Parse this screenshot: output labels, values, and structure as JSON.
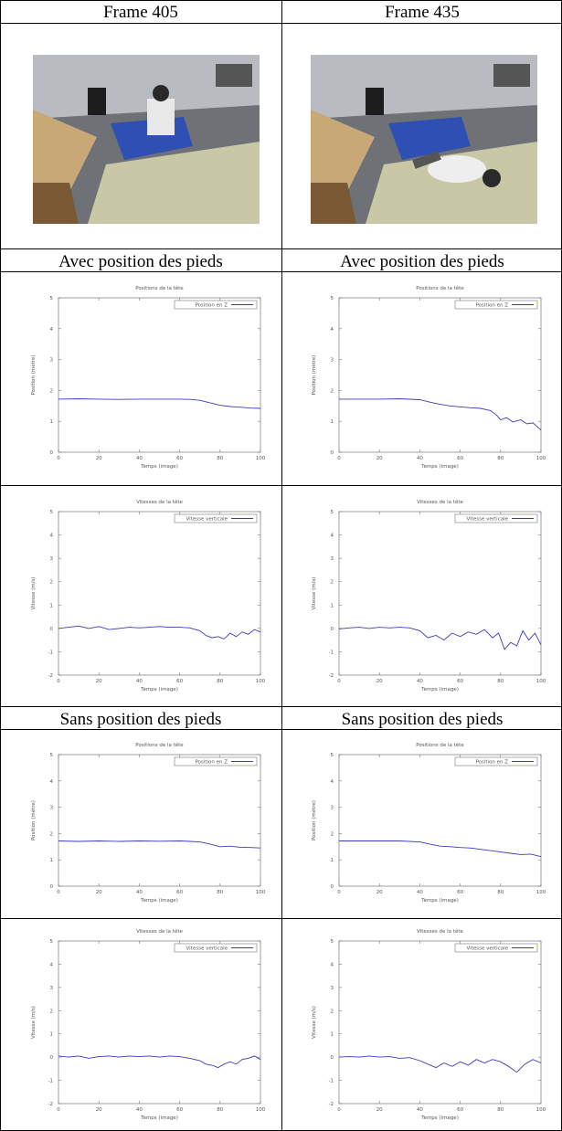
{
  "headers": {
    "frame_a": "Frame 405",
    "frame_b": "Frame 435",
    "avec_a": "Avec position des pieds",
    "avec_b": "Avec position des pieds",
    "sans_a": "Sans position des pieds",
    "sans_b": "Sans position des pieds"
  },
  "photos": [
    {
      "name": "frame-405-photo"
    },
    {
      "name": "frame-435-photo"
    }
  ],
  "chart_data": [
    {
      "id": "avec-pos-405",
      "type": "line",
      "title": "Positions de la tête",
      "xlabel": "Temps (image)",
      "ylabel": "Position (mètre)",
      "xlim": [
        0,
        100
      ],
      "ylim": [
        0,
        5
      ],
      "xticks": [
        0,
        20,
        40,
        60,
        80,
        100
      ],
      "yticks": [
        0,
        1,
        2,
        3,
        4,
        5
      ],
      "grid": false,
      "legend": "top-right",
      "series": [
        {
          "name": "Position en Z",
          "color": "#3b3bb8",
          "x": [
            0,
            10,
            20,
            30,
            40,
            50,
            60,
            65,
            70,
            75,
            80,
            85,
            90,
            95,
            100
          ],
          "y": [
            1.72,
            1.73,
            1.72,
            1.71,
            1.72,
            1.72,
            1.72,
            1.71,
            1.68,
            1.6,
            1.52,
            1.48,
            1.46,
            1.43,
            1.42
          ]
        }
      ]
    },
    {
      "id": "avec-pos-435",
      "type": "line",
      "title": "Positions de la tête",
      "xlabel": "Temps (image)",
      "ylabel": "Position (mètre)",
      "xlim": [
        0,
        100
      ],
      "ylim": [
        0,
        5
      ],
      "xticks": [
        0,
        20,
        40,
        60,
        80,
        100
      ],
      "yticks": [
        0,
        1,
        2,
        3,
        4,
        5
      ],
      "grid": false,
      "legend": "top-right",
      "series": [
        {
          "name": "Position en Z",
          "color": "#3b3bb8",
          "x": [
            0,
            10,
            20,
            30,
            40,
            45,
            50,
            55,
            60,
            65,
            70,
            75,
            78,
            80,
            83,
            86,
            90,
            93,
            96,
            100
          ],
          "y": [
            1.72,
            1.72,
            1.72,
            1.73,
            1.7,
            1.62,
            1.55,
            1.5,
            1.47,
            1.44,
            1.42,
            1.35,
            1.2,
            1.05,
            1.12,
            0.98,
            1.05,
            0.92,
            0.95,
            0.72
          ]
        }
      ]
    },
    {
      "id": "avec-vit-405",
      "type": "line",
      "title": "Vitesses de la tête",
      "xlabel": "Temps (image)",
      "ylabel": "Vitesse (m/s)",
      "xlim": [
        0,
        100
      ],
      "ylim": [
        -2,
        5
      ],
      "xticks": [
        0,
        20,
        40,
        60,
        80,
        100
      ],
      "yticks": [
        -2,
        -1,
        0,
        1,
        2,
        3,
        4,
        5
      ],
      "grid": false,
      "legend": "top-right",
      "series": [
        {
          "name": "Vitesse verticale",
          "color": "#3b3bb8",
          "x": [
            0,
            5,
            10,
            15,
            20,
            25,
            30,
            35,
            40,
            45,
            50,
            55,
            60,
            65,
            70,
            73,
            76,
            79,
            82,
            85,
            88,
            91,
            94,
            97,
            100
          ],
          "y": [
            0.0,
            0.05,
            0.1,
            0.0,
            0.08,
            -0.05,
            0.0,
            0.05,
            0.02,
            0.05,
            0.08,
            0.05,
            0.05,
            0.02,
            -0.1,
            -0.3,
            -0.4,
            -0.35,
            -0.45,
            -0.2,
            -0.35,
            -0.15,
            -0.25,
            -0.05,
            -0.15
          ]
        }
      ]
    },
    {
      "id": "avec-vit-435",
      "type": "line",
      "title": "Vitesses de la tête",
      "xlabel": "Temps (image)",
      "ylabel": "Vitesse (m/s)",
      "xlim": [
        0,
        100
      ],
      "ylim": [
        -2,
        5
      ],
      "xticks": [
        0,
        20,
        40,
        60,
        80,
        100
      ],
      "yticks": [
        -2,
        -1,
        0,
        1,
        2,
        3,
        4,
        5
      ],
      "grid": false,
      "legend": "top-right",
      "series": [
        {
          "name": "Vitesse verticale",
          "color": "#3b3bb8",
          "x": [
            0,
            5,
            10,
            15,
            20,
            25,
            30,
            35,
            40,
            44,
            48,
            52,
            56,
            60,
            64,
            68,
            72,
            76,
            79,
            82,
            85,
            88,
            91,
            94,
            97,
            100
          ],
          "y": [
            -0.02,
            0.02,
            0.05,
            0.0,
            0.05,
            0.02,
            0.05,
            0.02,
            -0.1,
            -0.4,
            -0.3,
            -0.5,
            -0.2,
            -0.35,
            -0.15,
            -0.25,
            -0.05,
            -0.4,
            -0.2,
            -0.9,
            -0.6,
            -0.75,
            -0.1,
            -0.5,
            -0.2,
            -0.7
          ]
        }
      ]
    },
    {
      "id": "sans-pos-405",
      "type": "line",
      "title": "Positions de la tête",
      "xlabel": "Temps (image)",
      "ylabel": "Position (mètre)",
      "xlim": [
        0,
        100
      ],
      "ylim": [
        0,
        5
      ],
      "xticks": [
        0,
        20,
        40,
        60,
        80,
        100
      ],
      "yticks": [
        0,
        1,
        2,
        3,
        4,
        5
      ],
      "grid": false,
      "legend": "top-right",
      "series": [
        {
          "name": "Position en Z",
          "color": "#3b3bb8",
          "x": [
            0,
            10,
            20,
            30,
            40,
            50,
            60,
            65,
            70,
            75,
            80,
            85,
            90,
            95,
            100
          ],
          "y": [
            1.72,
            1.7,
            1.72,
            1.7,
            1.72,
            1.71,
            1.72,
            1.7,
            1.68,
            1.6,
            1.5,
            1.52,
            1.48,
            1.47,
            1.45
          ]
        }
      ]
    },
    {
      "id": "sans-pos-435",
      "type": "line",
      "title": "Positions de la tête",
      "xlabel": "Temps (image)",
      "ylabel": "Position (mètre)",
      "xlim": [
        0,
        100
      ],
      "ylim": [
        0,
        5
      ],
      "xticks": [
        0,
        20,
        40,
        60,
        80,
        100
      ],
      "yticks": [
        0,
        1,
        2,
        3,
        4,
        5
      ],
      "grid": false,
      "legend": "top-right",
      "series": [
        {
          "name": "Position en Z",
          "color": "#3b3bb8",
          "x": [
            0,
            10,
            20,
            30,
            40,
            45,
            50,
            55,
            60,
            65,
            70,
            75,
            80,
            85,
            90,
            95,
            100
          ],
          "y": [
            1.72,
            1.72,
            1.72,
            1.72,
            1.68,
            1.6,
            1.52,
            1.5,
            1.47,
            1.45,
            1.4,
            1.35,
            1.3,
            1.25,
            1.2,
            1.22,
            1.12
          ]
        }
      ]
    },
    {
      "id": "sans-vit-405",
      "type": "line",
      "title": "Vitesses de la tête",
      "xlabel": "Temps (image)",
      "ylabel": "Vitesse (m/s)",
      "xlim": [
        0,
        100
      ],
      "ylim": [
        -2,
        5
      ],
      "xticks": [
        0,
        20,
        40,
        60,
        80,
        100
      ],
      "yticks": [
        -2,
        -1,
        0,
        1,
        2,
        3,
        4,
        5
      ],
      "grid": false,
      "legend": "top-right",
      "series": [
        {
          "name": "Vitesse verticale",
          "color": "#3b3bb8",
          "x": [
            0,
            5,
            10,
            15,
            20,
            25,
            30,
            35,
            40,
            45,
            50,
            55,
            60,
            65,
            70,
            73,
            76,
            79,
            82,
            85,
            88,
            91,
            94,
            97,
            100
          ],
          "y": [
            0.05,
            0.0,
            0.05,
            -0.05,
            0.02,
            0.05,
            0.0,
            0.05,
            0.02,
            0.05,
            0.0,
            0.05,
            0.02,
            -0.05,
            -0.15,
            -0.3,
            -0.35,
            -0.45,
            -0.3,
            -0.2,
            -0.3,
            -0.1,
            -0.05,
            0.05,
            -0.1
          ]
        }
      ]
    },
    {
      "id": "sans-vit-435",
      "type": "line",
      "title": "Vitesses de la tête",
      "xlabel": "Temps (image)",
      "ylabel": "Vitesse (m/s)",
      "xlim": [
        0,
        100
      ],
      "ylim": [
        -2,
        5
      ],
      "xticks": [
        0,
        20,
        40,
        60,
        80,
        100
      ],
      "yticks": [
        -2,
        -1,
        0,
        1,
        2,
        3,
        4,
        5
      ],
      "grid": false,
      "legend": "top-right",
      "series": [
        {
          "name": "Vitesse verticale",
          "color": "#3b3bb8",
          "x": [
            0,
            5,
            10,
            15,
            20,
            25,
            30,
            35,
            40,
            44,
            48,
            52,
            56,
            60,
            64,
            68,
            72,
            76,
            80,
            84,
            88,
            92,
            96,
            100
          ],
          "y": [
            0.0,
            0.02,
            0.0,
            0.05,
            0.0,
            0.02,
            -0.05,
            -0.02,
            -0.15,
            -0.3,
            -0.45,
            -0.25,
            -0.4,
            -0.2,
            -0.35,
            -0.1,
            -0.25,
            -0.1,
            -0.2,
            -0.4,
            -0.65,
            -0.3,
            -0.1,
            -0.25
          ]
        }
      ]
    }
  ]
}
